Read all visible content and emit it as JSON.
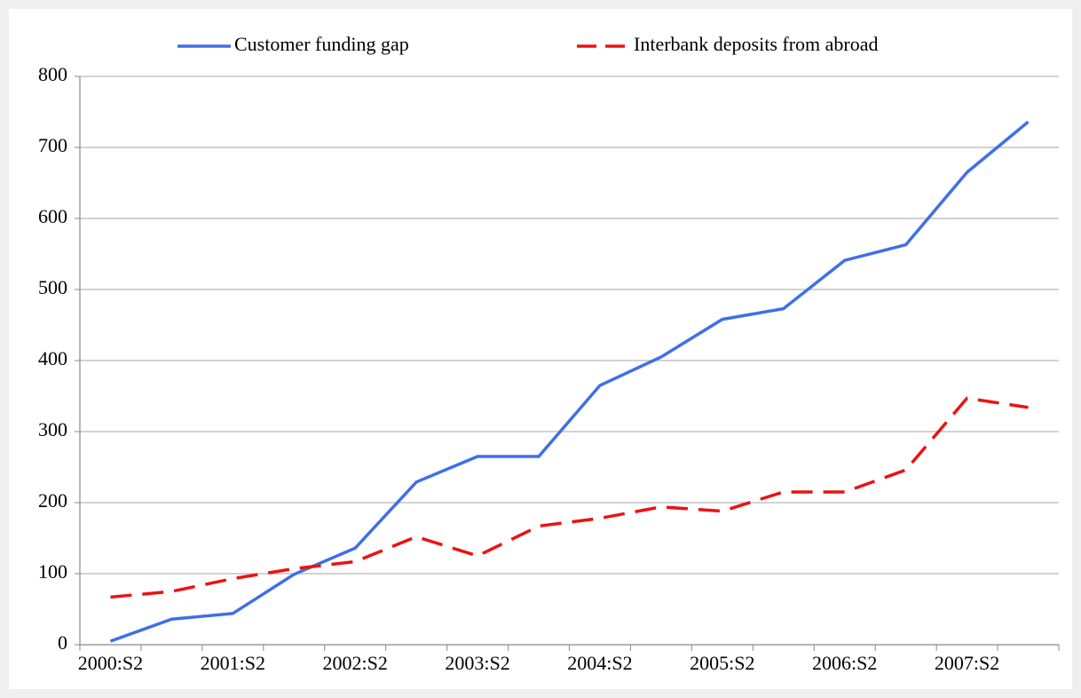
{
  "chart_data": {
    "type": "line",
    "categories": [
      "2000:S2",
      null,
      "2001:S2",
      null,
      "2002:S2",
      null,
      "2003:S2",
      null,
      "2004:S2",
      null,
      "2005:S2",
      null,
      "2006:S2",
      null,
      "2007:S2",
      null
    ],
    "series": [
      {
        "name": "Customer funding gap",
        "color": "#3f6fe8",
        "dash": "solid",
        "values": [
          5,
          36,
          44,
          99,
          136,
          229,
          265,
          265,
          365,
          405,
          458,
          473,
          541,
          563,
          665,
          736
        ]
      },
      {
        "name": "Interbank deposits from abroad",
        "color": "#ee1111",
        "dash": "dashed",
        "values": [
          67,
          75,
          93,
          107,
          117,
          152,
          125,
          167,
          178,
          194,
          188,
          215,
          215,
          246,
          347,
          334
        ]
      }
    ],
    "ylim": [
      0,
      800
    ],
    "yticks": [
      0,
      100,
      200,
      300,
      400,
      500,
      600,
      700,
      800
    ],
    "grid": true,
    "legend": "top"
  }
}
